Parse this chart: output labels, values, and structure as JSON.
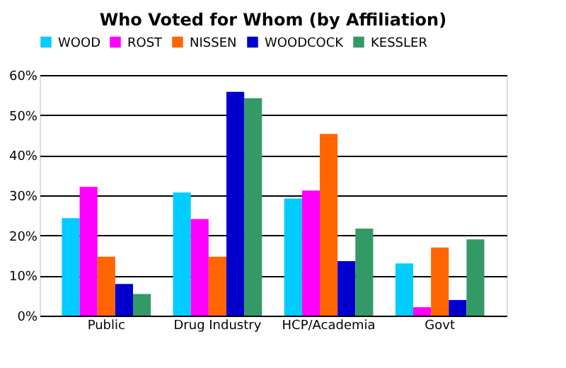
{
  "chart_data": {
    "type": "bar",
    "title": "Who Voted for Whom (by Affiliation)",
    "categories": [
      "Public",
      "Drug Industry",
      "HCP/Academia",
      "Govt"
    ],
    "series": [
      {
        "name": "WOOD",
        "color": "#00ccff",
        "values": [
          24.3,
          30.7,
          29.2,
          13.0
        ]
      },
      {
        "name": "ROST",
        "color": "#ff00ff",
        "values": [
          32.1,
          24.1,
          31.2,
          2.1
        ]
      },
      {
        "name": "NISSEN",
        "color": "#ff6600",
        "values": [
          14.7,
          14.7,
          45.3,
          17.0
        ]
      },
      {
        "name": "WOODCOCK",
        "color": "#0000cc",
        "values": [
          7.9,
          55.8,
          13.6,
          3.9
        ]
      },
      {
        "name": "KESSLER",
        "color": "#339966",
        "values": [
          5.4,
          54.2,
          21.7,
          19.0
        ]
      }
    ],
    "ylim": [
      0,
      60
    ],
    "yticks": [
      {
        "value": 0,
        "label": "0%"
      },
      {
        "value": 10,
        "label": "10%"
      },
      {
        "value": 20,
        "label": "20%"
      },
      {
        "value": 30,
        "label": "30%"
      },
      {
        "value": 40,
        "label": "40%"
      },
      {
        "value": 50,
        "label": "50%"
      },
      {
        "value": 60,
        "label": "60%"
      }
    ],
    "grid": "y",
    "legend": "top"
  }
}
